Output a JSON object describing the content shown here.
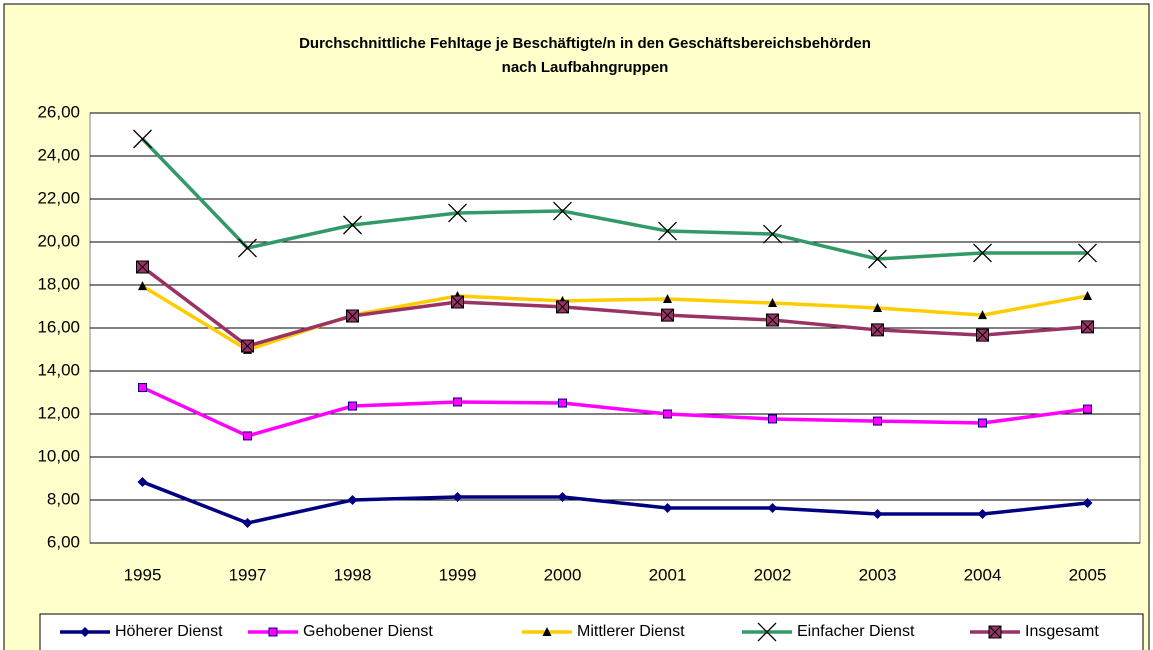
{
  "chart_data": {
    "type": "line",
    "title": "Durchschnittliche Fehltage je Beschäftigte/n in den Geschäftsbereichsbehörden",
    "subtitle": "nach Laufbahngruppen",
    "categories": [
      "1995",
      "1997",
      "1998",
      "1999",
      "2000",
      "2001",
      "2002",
      "2003",
      "2004",
      "2005"
    ],
    "series": [
      {
        "name": "Höherer Dienst",
        "color": "#000080",
        "marker": "diamond",
        "values": [
          8.84,
          6.93,
          8.0,
          8.14,
          8.14,
          7.63,
          7.63,
          7.35,
          7.35,
          7.86
        ]
      },
      {
        "name": "Gehobener Dienst",
        "color": "#ff00ff",
        "marker": "square",
        "values": [
          13.23,
          10.98,
          12.37,
          12.56,
          12.51,
          12.0,
          11.77,
          11.67,
          11.58,
          12.23
        ]
      },
      {
        "name": "Mittlerer Dienst",
        "color": "#ffcc00",
        "marker": "triangle",
        "values": [
          17.95,
          14.98,
          16.6,
          17.49,
          17.26,
          17.35,
          17.16,
          16.93,
          16.6,
          17.49
        ]
      },
      {
        "name": "Einfacher Dienst",
        "color": "#339966",
        "marker": "x",
        "values": [
          24.79,
          19.72,
          20.79,
          21.35,
          21.44,
          20.51,
          20.37,
          19.21,
          19.49,
          19.49
        ]
      },
      {
        "name": "Insgesamt",
        "color": "#993366",
        "marker": "boxx",
        "values": [
          18.84,
          15.16,
          16.56,
          17.21,
          16.98,
          16.6,
          16.37,
          15.91,
          15.67,
          16.05
        ]
      }
    ],
    "ylim": [
      6,
      26
    ],
    "yticks": [
      {
        "value": 6,
        "label": "6,00"
      },
      {
        "value": 8,
        "label": "8,00"
      },
      {
        "value": 10,
        "label": "10,00"
      },
      {
        "value": 12,
        "label": "12,00"
      },
      {
        "value": 14,
        "label": "14,00"
      },
      {
        "value": 16,
        "label": "16,00"
      },
      {
        "value": 18,
        "label": "18,00"
      },
      {
        "value": 20,
        "label": "20,00"
      },
      {
        "value": 22,
        "label": "22,00"
      },
      {
        "value": 24,
        "label": "24,00"
      },
      {
        "value": 26,
        "label": "26,00"
      }
    ],
    "grid": true,
    "legend": "bottom"
  }
}
